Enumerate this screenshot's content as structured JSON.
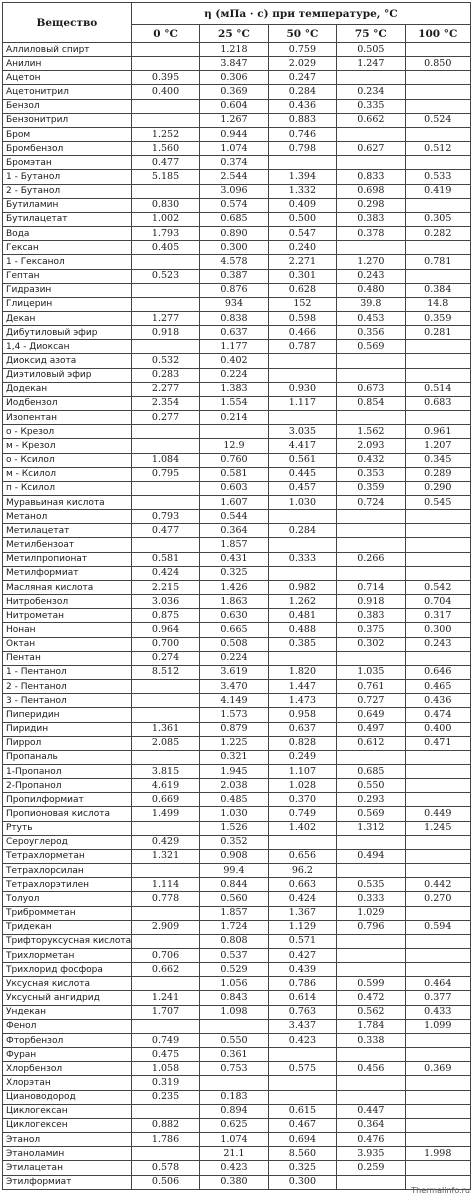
{
  "table": {
    "header_substance": "Вещество",
    "header_group": "η (мПа · с) при температуре, °С",
    "temperatures": [
      "0 °C",
      "25 °C",
      "50 °C",
      "75 °C",
      "100 °C"
    ],
    "rows": [
      [
        "Аллиловый спирт",
        "",
        "1.218",
        "0.759",
        "0.505",
        ""
      ],
      [
        "Анилин",
        "",
        "3.847",
        "2.029",
        "1.247",
        "0.850"
      ],
      [
        "Ацетон",
        "0.395",
        "0.306",
        "0.247",
        "",
        ""
      ],
      [
        "Ацетонитрил",
        "0.400",
        "0.369",
        "0.284",
        "0.234",
        ""
      ],
      [
        "Бензол",
        "",
        "0.604",
        "0.436",
        "0.335",
        ""
      ],
      [
        "Бензонитрил",
        "",
        "1.267",
        "0.883",
        "0.662",
        "0.524"
      ],
      [
        "Бром",
        "1.252",
        "0.944",
        "0.746",
        "",
        ""
      ],
      [
        "Бромбензол",
        "1.560",
        "1.074",
        "0.798",
        "0.627",
        "0.512"
      ],
      [
        "Бромэтан",
        "0.477",
        "0.374",
        "",
        "",
        ""
      ],
      [
        "1 - Бутанол",
        "5.185",
        "2.544",
        "1.394",
        "0.833",
        "0.533"
      ],
      [
        "2 - Бутанол",
        "",
        "3.096",
        "1.332",
        "0.698",
        "0.419"
      ],
      [
        "Бутиламин",
        "0.830",
        "0.574",
        "0.409",
        "0.298",
        ""
      ],
      [
        "Бутилацетат",
        "1.002",
        "0.685",
        "0.500",
        "0.383",
        "0.305"
      ],
      [
        "Вода",
        "1.793",
        "0.890",
        "0.547",
        "0.378",
        "0.282"
      ],
      [
        "Гексан",
        "0.405",
        "0.300",
        "0.240",
        "",
        ""
      ],
      [
        "1 - Гексанол",
        "",
        "4.578",
        "2.271",
        "1.270",
        "0.781"
      ],
      [
        "Гептан",
        "0.523",
        "0.387",
        "0.301",
        "0.243",
        ""
      ],
      [
        "Гидразин",
        "",
        "0.876",
        "0.628",
        "0.480",
        "0.384"
      ],
      [
        "Глицерин",
        "",
        "934",
        "152",
        "39.8",
        "14.8"
      ],
      [
        "Декан",
        "1.277",
        "0.838",
        "0.598",
        "0.453",
        "0.359"
      ],
      [
        "Дибутиловый эфир",
        "0.918",
        "0.637",
        "0.466",
        "0.356",
        "0.281"
      ],
      [
        "1,4 - Диоксан",
        "",
        "1.177",
        "0.787",
        "0.569",
        ""
      ],
      [
        "Диоксид азота",
        "0.532",
        "0.402",
        "",
        "",
        ""
      ],
      [
        "Диэтиловый эфир",
        "0.283",
        "0.224",
        "",
        "",
        ""
      ],
      [
        "Додекан",
        "2.277",
        "1.383",
        "0.930",
        "0.673",
        "0.514"
      ],
      [
        "Иодбензол",
        "2.354",
        "1.554",
        "1.117",
        "0.854",
        "0.683"
      ],
      [
        "Изопентан",
        "0.277",
        "0.214",
        "",
        "",
        ""
      ],
      [
        "о - Крезол",
        "",
        "",
        "3.035",
        "1.562",
        "0.961"
      ],
      [
        "м - Крезол",
        "",
        "12.9",
        "4.417",
        "2.093",
        "1.207"
      ],
      [
        "о - Ксилол",
        "1.084",
        "0.760",
        "0.561",
        "0.432",
        "0.345"
      ],
      [
        "м - Ксилол",
        "0.795",
        "0.581",
        "0.445",
        "0.353",
        "0.289"
      ],
      [
        "п - Ксилол",
        "",
        "0.603",
        "0.457",
        "0.359",
        "0.290"
      ],
      [
        "Муравьиная кислота",
        "",
        "1.607",
        "1.030",
        "0.724",
        "0.545"
      ],
      [
        "Метанол",
        "0.793",
        "0.544",
        "",
        "",
        ""
      ],
      [
        "Метилацетат",
        "0.477",
        "0.364",
        "0.284",
        "",
        ""
      ],
      [
        "Метилбензоат",
        "",
        "1.857",
        "",
        "",
        ""
      ],
      [
        "Метилпропионат",
        "0.581",
        "0.431",
        "0.333",
        "0.266",
        ""
      ],
      [
        "Метилформиат",
        "0.424",
        "0.325",
        "",
        "",
        ""
      ],
      [
        "Масляная кислота",
        "2.215",
        "1.426",
        "0.982",
        "0.714",
        "0.542"
      ],
      [
        "Нитробензол",
        "3.036",
        "1.863",
        "1.262",
        "0.918",
        "0.704"
      ],
      [
        "Нитрометан",
        "0.875",
        "0.630",
        "0.481",
        "0.383",
        "0.317"
      ],
      [
        "Нонан",
        "0.964",
        "0.665",
        "0.488",
        "0.375",
        "0.300"
      ],
      [
        "Октан",
        "0.700",
        "0.508",
        "0.385",
        "0.302",
        "0.243"
      ],
      [
        "Пентан",
        "0.274",
        "0.224",
        "",
        "",
        ""
      ],
      [
        "1 - Пентанол",
        "8.512",
        "3.619",
        "1.820",
        "1.035",
        "0.646"
      ],
      [
        "2 - Пентанол",
        "",
        "3.470",
        "1.447",
        "0.761",
        "0.465"
      ],
      [
        "3 - Пентанол",
        "",
        "4.149",
        "1.473",
        "0.727",
        "0.436"
      ],
      [
        "Пиперидин",
        "",
        "1.573",
        "0.958",
        "0.649",
        "0.474"
      ],
      [
        "Пиридин",
        "1.361",
        "0.879",
        "0.637",
        "0.497",
        "0.400"
      ],
      [
        "Пиррол",
        "2.085",
        "1.225",
        "0.828",
        "0.612",
        "0.471"
      ],
      [
        "Пропаналь",
        "",
        "0.321",
        "0.249",
        "",
        ""
      ],
      [
        "1-Пропанол",
        "3.815",
        "1.945",
        "1.107",
        "0.685",
        ""
      ],
      [
        "2-Пропанол",
        "4.619",
        "2.038",
        "1.028",
        "0.550",
        ""
      ],
      [
        "Пропилформиат",
        "0.669",
        "0.485",
        "0.370",
        "0.293",
        ""
      ],
      [
        "Пропионовая кислота",
        "1.499",
        "1.030",
        "0.749",
        "0.569",
        "0.449"
      ],
      [
        "Ртуть",
        "",
        "1.526",
        "1.402",
        "1.312",
        "1.245"
      ],
      [
        "Сероуглерод",
        "0.429",
        "0.352",
        "",
        "",
        ""
      ],
      [
        "Тетрахлорметан",
        "1.321",
        "0.908",
        "0.656",
        "0.494",
        ""
      ],
      [
        "Тетрахлорсилан",
        "",
        "99.4",
        "96.2",
        "",
        ""
      ],
      [
        "Тетрахлорэтилен",
        "1.114",
        "0.844",
        "0.663",
        "0.535",
        "0.442"
      ],
      [
        "Толуол",
        "0.778",
        "0.560",
        "0.424",
        "0.333",
        "0.270"
      ],
      [
        "Трибромметан",
        "",
        "1.857",
        "1.367",
        "1.029",
        ""
      ],
      [
        "Тридекан",
        "2.909",
        "1.724",
        "1.129",
        "0.796",
        "0.594"
      ],
      [
        "Трифторуксусная кислота",
        "",
        "0.808",
        "0.571",
        "",
        ""
      ],
      [
        "Трихлорметан",
        "0.706",
        "0.537",
        "0.427",
        "",
        ""
      ],
      [
        "Трихлорид фосфора",
        "0.662",
        "0.529",
        "0.439",
        "",
        ""
      ],
      [
        "Уксусная кислота",
        "",
        "1.056",
        "0.786",
        "0.599",
        "0.464"
      ],
      [
        "Уксусный ангидрид",
        "1.241",
        "0.843",
        "0.614",
        "0.472",
        "0.377"
      ],
      [
        "Ундекан",
        "1.707",
        "1.098",
        "0.763",
        "0.562",
        "0.433"
      ],
      [
        "Фенол",
        "",
        "",
        "3.437",
        "1.784",
        "1.099"
      ],
      [
        "Фторбензол",
        "0.749",
        "0.550",
        "0.423",
        "0.338",
        ""
      ],
      [
        "Фуран",
        "0.475",
        "0.361",
        "",
        "",
        ""
      ],
      [
        "Хлорбензол",
        "1.058",
        "0.753",
        "0.575",
        "0.456",
        "0.369"
      ],
      [
        "Хлорэтан",
        "0.319",
        "",
        "",
        "",
        ""
      ],
      [
        "Циановодород",
        "0.235",
        "0.183",
        "",
        "",
        ""
      ],
      [
        "Циклогексан",
        "",
        "0.894",
        "0.615",
        "0.447",
        ""
      ],
      [
        "Циклогексен",
        "0.882",
        "0.625",
        "0.467",
        "0.364",
        ""
      ],
      [
        "Этанол",
        "1.786",
        "1.074",
        "0.694",
        "0.476",
        ""
      ],
      [
        "Этаноламин",
        "",
        "21.1",
        "8.560",
        "3.935",
        "1.998"
      ],
      [
        "Этилацетан",
        "0.578",
        "0.423",
        "0.325",
        "0.259",
        ""
      ],
      [
        "Этилформиат",
        "0.506",
        "0.380",
        "0.300",
        "",
        ""
      ]
    ]
  },
  "watermark": "Thermalinfo.ru"
}
